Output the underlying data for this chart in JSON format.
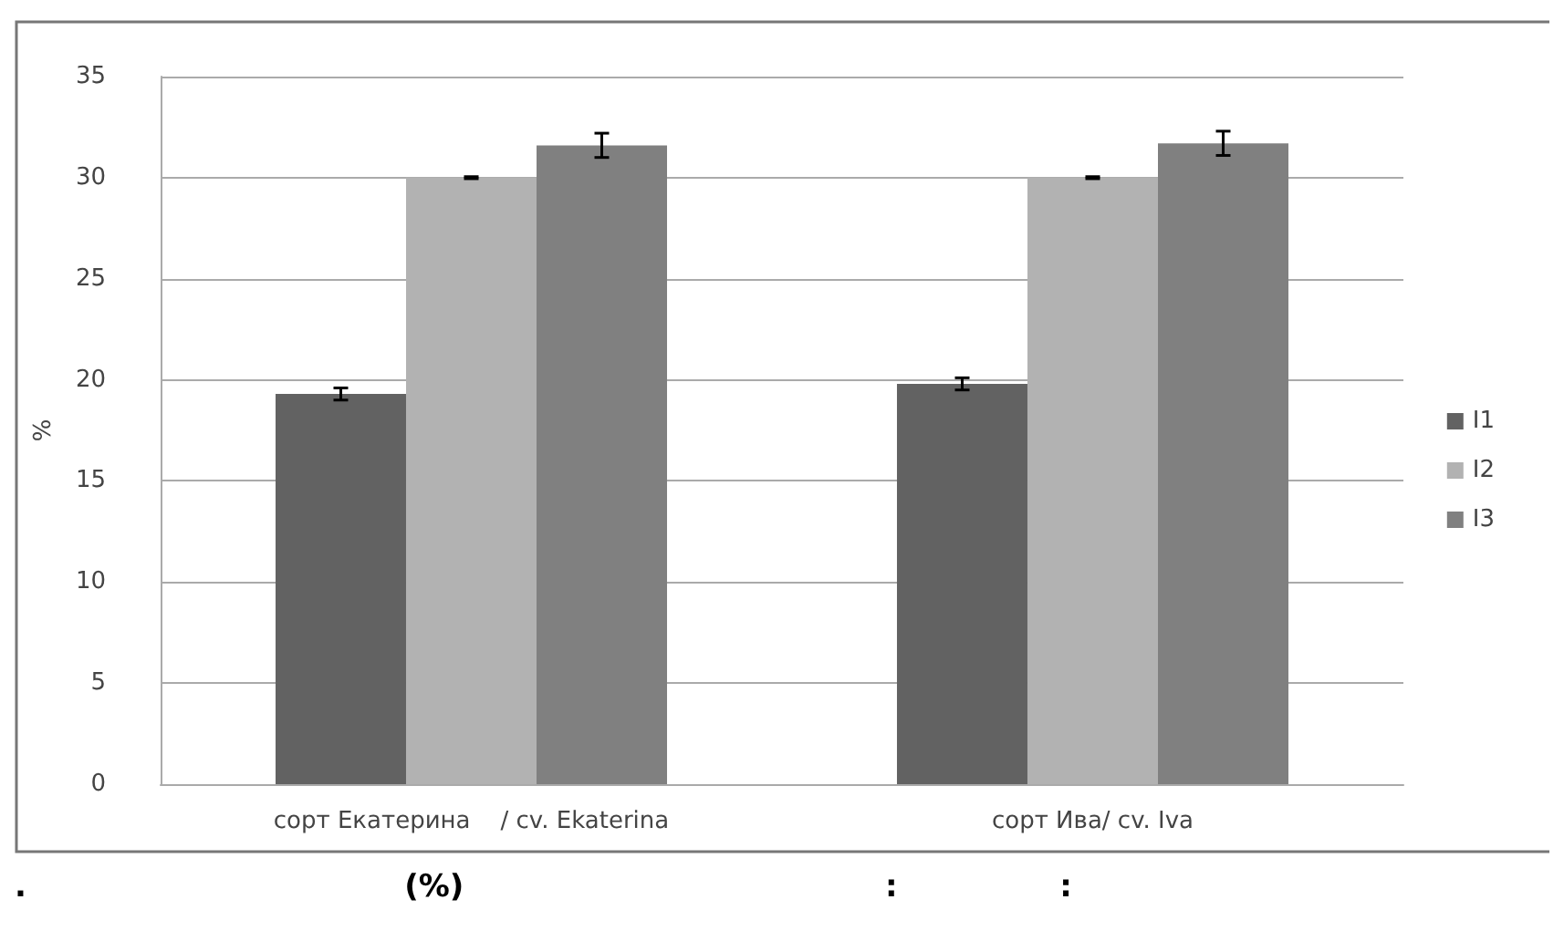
{
  "chart_data": {
    "type": "bar",
    "ylabel": "%",
    "categories": [
      "сорт Екатерина    / cv. Ekaterina",
      "сорт Ива/ cv. Iva"
    ],
    "series": [
      {
        "name": "I1",
        "color": "#626262",
        "values": [
          19.3,
          19.8
        ],
        "errors": [
          0.3,
          0.3
        ]
      },
      {
        "name": "I2",
        "color": "#b2b2b2",
        "values": [
          30.0,
          30.0
        ],
        "errors": [
          0.05,
          0.05
        ]
      },
      {
        "name": "I3",
        "color": "#808080",
        "values": [
          31.6,
          31.7
        ],
        "errors": [
          0.6,
          0.6
        ]
      }
    ],
    "ylim": [
      0,
      35
    ],
    "yticks": [
      0,
      5,
      10,
      15,
      20,
      25,
      30,
      35
    ],
    "grid": "y",
    "legend": "right",
    "annotations": [
      ".                                   (%)                                       :               :"
    ]
  }
}
